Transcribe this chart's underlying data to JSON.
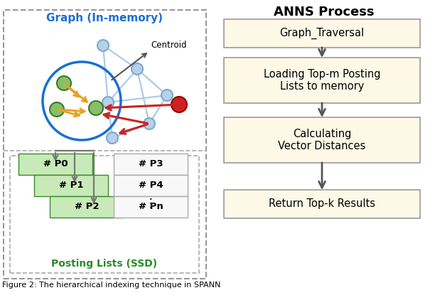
{
  "title_right": "ANNS Process",
  "title_left": "Graph (In-memory)",
  "title_ssd": "Posting Lists (SSD)",
  "flowchart_boxes": [
    "Graph_Traversal",
    "Loading Top-m Posting\nLists to memory",
    "Calculating\nVector Distances",
    "Return Top-k Results"
  ],
  "box_fill": "#FEF9E7",
  "box_edge": "#999999",
  "graph_node_color": "#b8d0e8",
  "green_node_color": "#88c068",
  "red_node_color": "#cc2222",
  "yellow_arrow_color": "#e8a020",
  "red_arrow_color": "#cc2222",
  "posting_green_fill": "#c8eab8",
  "posting_white_fill": "#f8f8f8",
  "outer_box_color": "#999999",
  "inner_box_color": "#aaaaaa",
  "figure_caption": "Figure 2: The hierarchical indexing technique in SPANN"
}
